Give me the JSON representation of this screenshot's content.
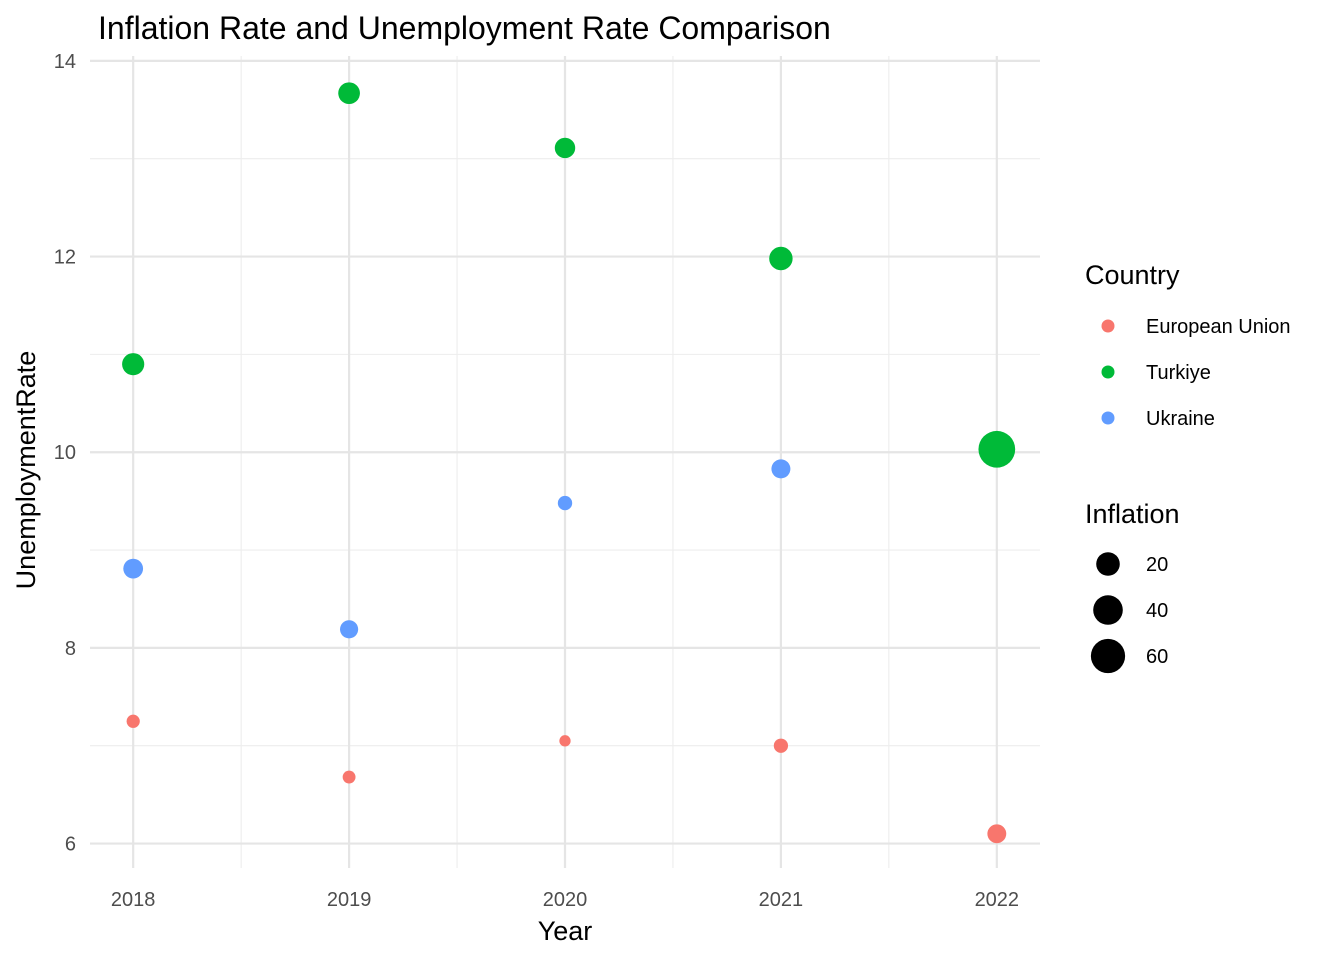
{
  "chart_data": {
    "type": "scatter",
    "title": "Inflation Rate and Unemployment Rate Comparison",
    "xlabel": "Year",
    "ylabel": "UnemploymentRate",
    "x_ticks": [
      2018,
      2019,
      2020,
      2021,
      2022
    ],
    "y_ticks": [
      6,
      8,
      10,
      12,
      14
    ],
    "xlim": [
      2017.8,
      2022.2
    ],
    "ylim": [
      5.75,
      14.05
    ],
    "grid": true,
    "legend_placement": "right",
    "color_legend": {
      "title": "Country",
      "entries": [
        {
          "name": "European Union",
          "color": "#F8766D"
        },
        {
          "name": "Turkiye",
          "color": "#00BA38"
        },
        {
          "name": "Ukraine",
          "color": "#619CFF"
        }
      ]
    },
    "size_legend": {
      "title": "Inflation",
      "entries": [
        20,
        40,
        60
      ]
    },
    "series": [
      {
        "name": "European Union",
        "points": [
          {
            "x": 2018,
            "y": 7.25,
            "inflation": 1.7
          },
          {
            "x": 2019,
            "y": 6.68,
            "inflation": 1.4
          },
          {
            "x": 2020,
            "y": 7.05,
            "inflation": 0.5
          },
          {
            "x": 2021,
            "y": 7.0,
            "inflation": 2.6
          },
          {
            "x": 2022,
            "y": 6.1,
            "inflation": 9.2
          }
        ]
      },
      {
        "name": "Turkiye",
        "points": [
          {
            "x": 2018,
            "y": 10.9,
            "inflation": 16.3
          },
          {
            "x": 2019,
            "y": 13.67,
            "inflation": 15.2
          },
          {
            "x": 2020,
            "y": 13.11,
            "inflation": 12.3
          },
          {
            "x": 2021,
            "y": 11.98,
            "inflation": 19.6
          },
          {
            "x": 2022,
            "y": 10.03,
            "inflation": 72.3
          }
        ]
      },
      {
        "name": "Ukraine",
        "points": [
          {
            "x": 2018,
            "y": 8.81,
            "inflation": 10.9
          },
          {
            "x": 2019,
            "y": 8.19,
            "inflation": 7.9
          },
          {
            "x": 2020,
            "y": 9.48,
            "inflation": 2.7
          },
          {
            "x": 2021,
            "y": 9.83,
            "inflation": 9.4
          }
        ]
      }
    ]
  }
}
